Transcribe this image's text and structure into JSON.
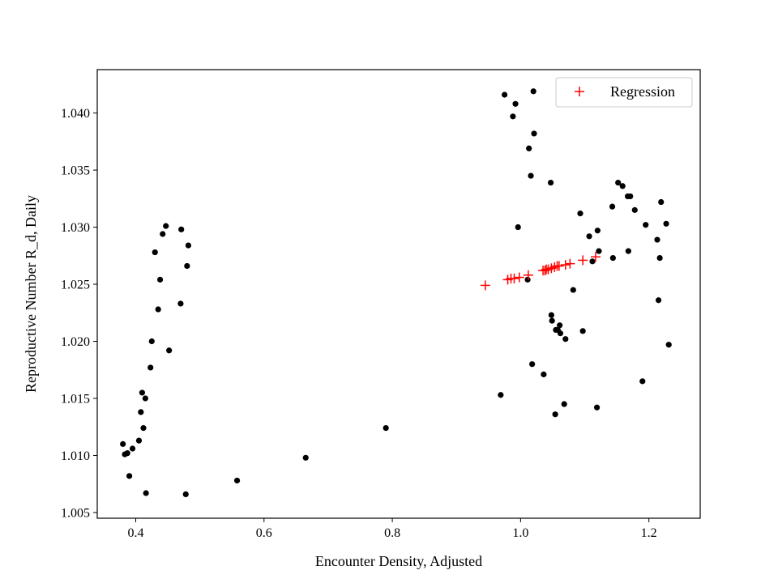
{
  "chart_data": {
    "type": "scatter",
    "xlabel": "Encounter Density, Adjusted",
    "ylabel": "Reproductive Number R_d, Daily",
    "xlim": [
      0.34,
      1.28
    ],
    "ylim": [
      1.0045,
      1.0438
    ],
    "xticks": [
      0.4,
      0.6,
      0.8,
      1.0,
      1.2
    ],
    "xtick_labels": [
      "0.4",
      "0.6",
      "0.8",
      "1.0",
      "1.2"
    ],
    "yticks": [
      1.005,
      1.01,
      1.015,
      1.02,
      1.025,
      1.03,
      1.035,
      1.04
    ],
    "ytick_labels": [
      "1.005",
      "1.010",
      "1.015",
      "1.020",
      "1.025",
      "1.030",
      "1.035",
      "1.040"
    ],
    "grid": false,
    "legend_position": "top-right",
    "series": [
      {
        "marker": "dot",
        "color": "#000000",
        "x": [
          0.38,
          0.383,
          0.387,
          0.39,
          0.395,
          0.405,
          0.408,
          0.41,
          0.412,
          0.415,
          0.416,
          0.423,
          0.425,
          0.43,
          0.435,
          0.438,
          0.442,
          0.447,
          0.452,
          0.47,
          0.471,
          0.478,
          0.48,
          0.482,
          0.558,
          0.665,
          0.79,
          0.969,
          0.975,
          0.988,
          0.992,
          0.996,
          1.011,
          1.013,
          1.016,
          1.018,
          1.02,
          1.021,
          1.036,
          1.047,
          1.048,
          1.049,
          1.054,
          1.055,
          1.058,
          1.061,
          1.062,
          1.068,
          1.07,
          1.082,
          1.093,
          1.097,
          1.107,
          1.112,
          1.119,
          1.12,
          1.122,
          1.143,
          1.144,
          1.152,
          1.159,
          1.167,
          1.168,
          1.171,
          1.178,
          1.19,
          1.195,
          1.213,
          1.215,
          1.217,
          1.219,
          1.227,
          1.231
        ],
        "y": [
          1.011,
          1.0101,
          1.0102,
          1.0082,
          1.0106,
          1.0113,
          1.0138,
          1.0155,
          1.0124,
          1.015,
          1.0067,
          1.0177,
          1.02,
          1.0278,
          1.0228,
          1.0254,
          1.0294,
          1.0301,
          1.0192,
          1.0233,
          1.0298,
          1.0066,
          1.0266,
          1.0284,
          1.0078,
          1.0098,
          1.0124,
          1.0153,
          1.0416,
          1.0397,
          1.0408,
          1.03,
          1.0254,
          1.0369,
          1.0345,
          1.018,
          1.0419,
          1.0382,
          1.0171,
          1.0339,
          1.0223,
          1.0218,
          1.0136,
          1.021,
          1.021,
          1.0214,
          1.0207,
          1.0145,
          1.0202,
          1.0245,
          1.0312,
          1.0209,
          1.0292,
          1.027,
          1.0142,
          1.0297,
          1.0279,
          1.0318,
          1.0273,
          1.0339,
          1.0336,
          1.0327,
          1.0279,
          1.0327,
          1.0315,
          1.0165,
          1.0302,
          1.0289,
          1.0236,
          1.0273,
          1.0322,
          1.0303,
          1.0197
        ]
      },
      {
        "name": "Regression",
        "marker": "plus",
        "color": "#ff0000",
        "x": [
          0.945,
          0.98,
          0.985,
          0.99,
          0.998,
          1.012,
          1.035,
          1.038,
          1.04,
          1.043,
          1.048,
          1.053,
          1.057,
          1.06,
          1.07,
          1.077,
          1.097,
          1.117
        ],
        "y": [
          1.0249,
          1.0254,
          1.0255,
          1.0255,
          1.0256,
          1.0258,
          1.0262,
          1.0262,
          1.0263,
          1.0263,
          1.0264,
          1.0265,
          1.0266,
          1.0266,
          1.0267,
          1.0268,
          1.0271,
          1.0274
        ]
      }
    ]
  }
}
